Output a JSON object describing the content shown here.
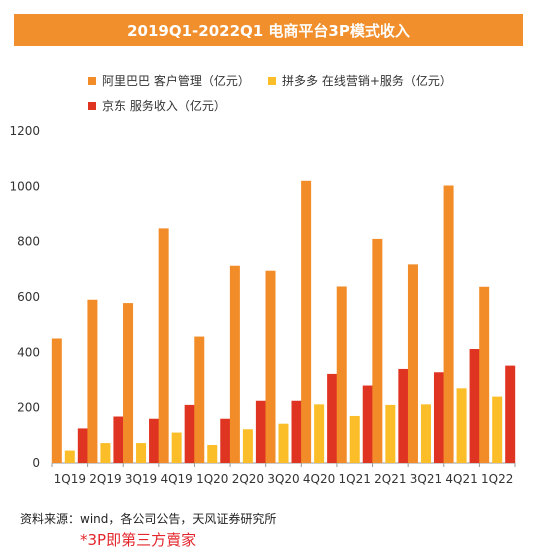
{
  "title": "2019Q1-2022Q1 电商平台3P模式收入",
  "source": "资料来源：wind，各公司公告，天风证券研究所",
  "footnote": "*3P即第三方賣家",
  "chart_data": {
    "type": "bar",
    "categories": [
      "1Q19",
      "2Q19",
      "3Q19",
      "4Q19",
      "1Q20",
      "2Q20",
      "3Q20",
      "4Q20",
      "1Q21",
      "2Q21",
      "3Q21",
      "4Q21",
      "1Q22"
    ],
    "series": [
      {
        "name": "阿里巴巴 客户管理（亿元）",
        "color": "#f28c28",
        "values": [
          450,
          590,
          578,
          848,
          457,
          713,
          695,
          1020,
          638,
          810,
          718,
          1003,
          637
        ]
      },
      {
        "name": "拼多多 在线营销+服务（亿元）",
        "color": "#fbbd28",
        "values": [
          45,
          72,
          72,
          110,
          65,
          122,
          142,
          212,
          170,
          210,
          212,
          270,
          240
        ]
      },
      {
        "name": "京东 服务收入（亿元）",
        "color": "#e03423",
        "values": [
          125,
          168,
          160,
          210,
          160,
          225,
          225,
          322,
          280,
          340,
          328,
          412,
          352
        ]
      }
    ],
    "ylim": [
      0,
      1200
    ],
    "yticks": [
      0,
      200,
      400,
      600,
      800,
      1000,
      1200
    ],
    "grid": false,
    "legend_position": "top-left"
  }
}
